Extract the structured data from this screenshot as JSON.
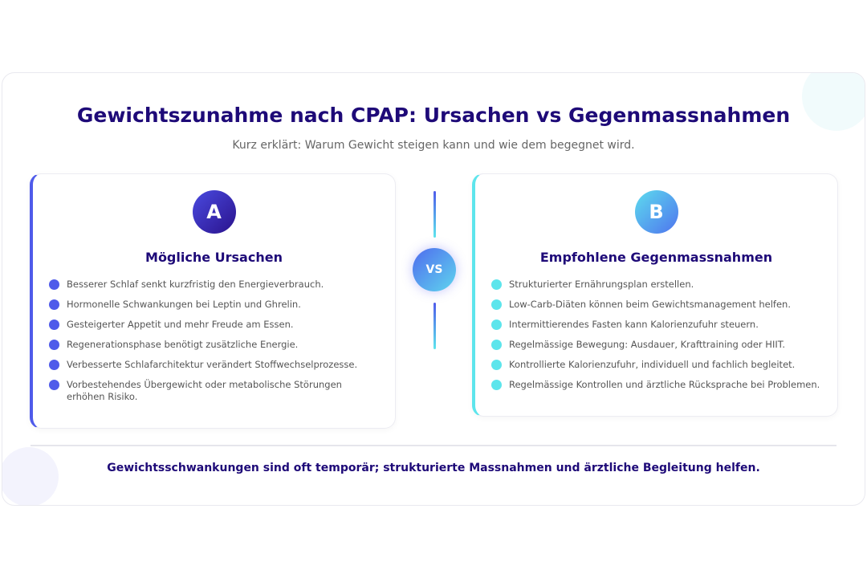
{
  "title": "Gewichtszunahme nach CPAP: Ursachen vs Gegenmassnahmen",
  "subtitle": "Kurz erklärt: Warum Gewicht steigen kann und wie dem begegnet wird.",
  "colors": {
    "title": "#1e0a78",
    "causes_accent": "#4f5bea",
    "measures_accent": "#5de5ec"
  },
  "vs_label": "VS",
  "causes": {
    "badge": "A",
    "title": "Mögliche Ursachen",
    "items": [
      "Besserer Schlaf senkt kurzfristig den Energieverbrauch.",
      "Hormonelle Schwankungen bei Leptin und Ghrelin.",
      "Gesteigerter Appetit und mehr Freude am Essen.",
      "Regenerationsphase benötigt zusätzliche Energie.",
      "Verbesserte Schlafarchitektur verändert Stoffwechselprozesse.",
      "Vorbestehendes Übergewicht oder metabolische Störungen erhöhen Risiko."
    ]
  },
  "measures": {
    "badge": "B",
    "title": "Empfohlene Gegenmassnahmen",
    "items": [
      "Strukturierter Ernährungsplan erstellen.",
      "Low-Carb-Diäten können beim Gewichtsmanagement helfen.",
      "Intermittierendes Fasten kann Kalorienzufuhr steuern.",
      "Regelmässige Bewegung: Ausdauer, Krafttraining oder HIIT.",
      "Kontrollierte Kalorienzufuhr, individuell und fachlich begleitet.",
      "Regelmässige Kontrollen und ärztliche Rücksprache bei Problemen."
    ]
  },
  "footer": "Gewichtsschwankungen sind oft temporär; strukturierte Massnahmen und ärztliche Begleitung helfen."
}
